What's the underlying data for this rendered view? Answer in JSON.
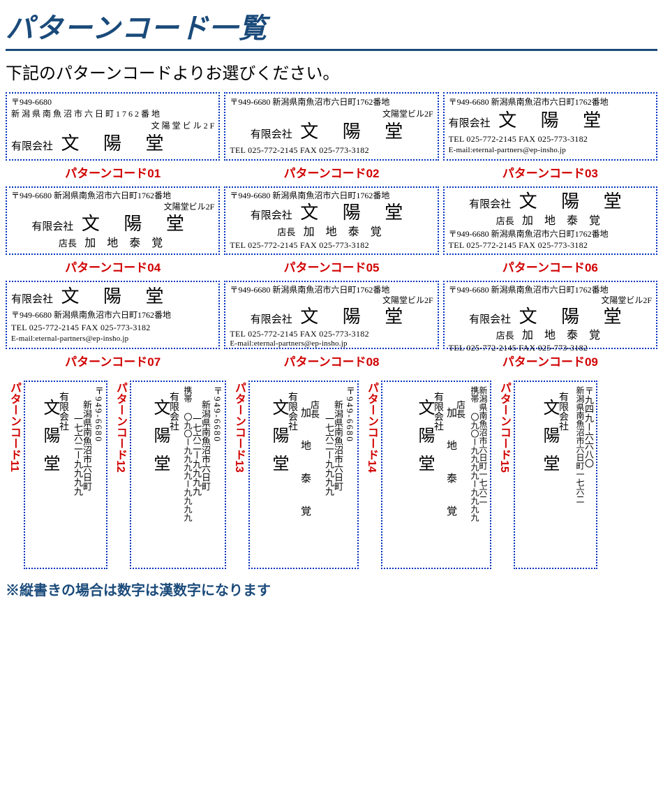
{
  "title": "パターンコード一覧",
  "subtitle": "下記のパターンコードよりお選びください。",
  "note": "※縦書きの場合は数字は漢数字になります",
  "colors": {
    "accent": "#1a4a7a",
    "border": "#0030c0",
    "code": "#d10000",
    "bg": "#ffffff"
  },
  "common": {
    "post": "〒949-6680",
    "addr_full": "新潟県南魚沼市六日町1762番地",
    "addr_inline": "〒949-6680 新潟県南魚沼市六日町1762番地",
    "bldg": "文陽堂ビル2F",
    "company_pre": "有限会社",
    "company": "文 陽 堂",
    "tel": "TEL 025-772-2145",
    "fax": "FAX 025-773-3182",
    "telfax": "TEL 025-772-2145  FAX 025-773-3182",
    "email": "E-mail:eternal-partners@ep-insho.jp",
    "role": "店長",
    "person": "加 地 泰 覚",
    "addr_2line_1_a": "新 潟 県 南 魚 沼 市 六 日 町 1 7 6 2 番 地",
    "addr_2line_1_b": "文 陽 堂 ビ ル 2 F"
  },
  "codes": {
    "c01": "パターンコード01",
    "c02": "パターンコード02",
    "c03": "パターンコード03",
    "c04": "パターンコード04",
    "c05": "パターンコード05",
    "c06": "パターンコード06",
    "c07": "パターンコード07",
    "c08": "パターンコード08",
    "c09": "パターンコード09",
    "c11": "パターンコード11",
    "c12": "パターンコード12",
    "c13": "パターンコード13",
    "c14": "パターンコード14",
    "c15": "パターンコード15"
  },
  "v": {
    "post": "〒949-6680",
    "post_kanji": "〒九四九ー六六八〇",
    "addr1": "新潟県南魚沼市六日町",
    "addr2": "一七六二ー九九九九",
    "addr_combined": "新潟県南魚沼市六日町一七六二",
    "addr_combined_k": "新潟県南魚沼市六日町一七六二",
    "phone": "携帯 〇九〇ー九九九九ー九九九九",
    "role": "店長",
    "name": "加 地 泰 覚",
    "company_pre": "有限会社",
    "company": "文陽堂"
  }
}
